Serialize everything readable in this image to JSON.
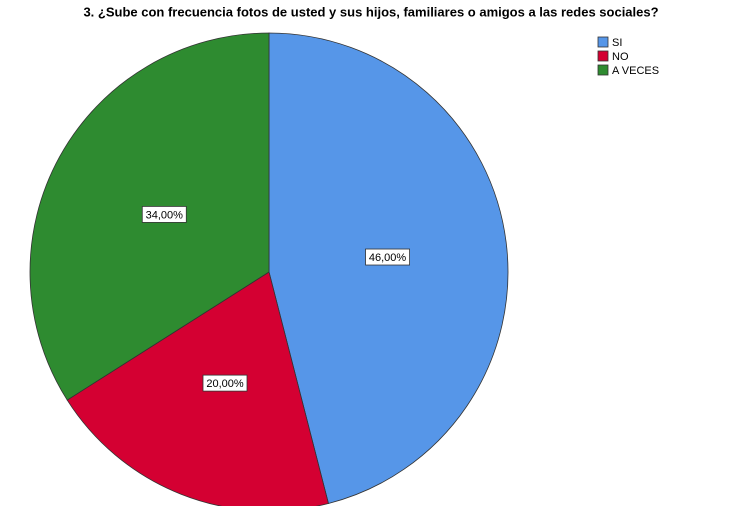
{
  "chart_data": {
    "type": "pie",
    "title": "3. ¿Sube con frecuencia fotos de usted y sus hijos, familiares o amigos a las redes sociales?",
    "categories": [
      "SI",
      "NO",
      "A VECES"
    ],
    "values": [
      46,
      20,
      34
    ],
    "value_labels": [
      "46,00%",
      "20,00%",
      "34,00%"
    ],
    "colors": [
      "#5696e8",
      "#d40032",
      "#2e8b30"
    ],
    "legend": "top-right"
  }
}
